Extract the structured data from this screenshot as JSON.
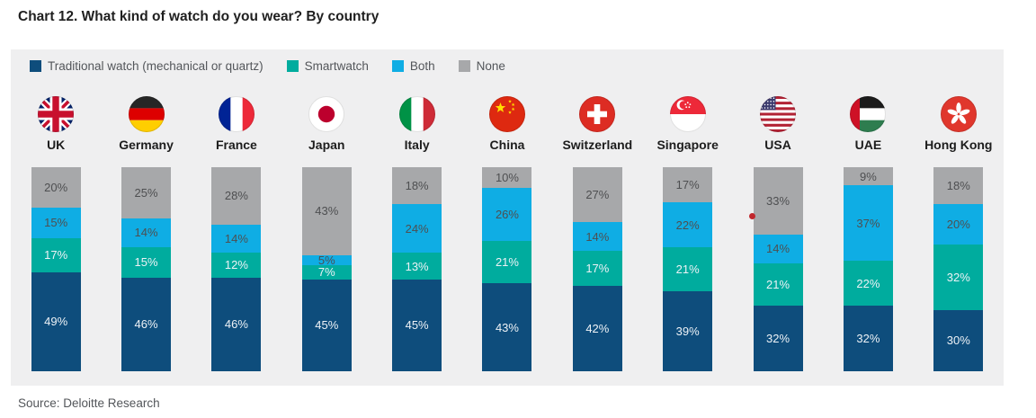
{
  "title": "Chart 12. What kind of watch do you wear? By country",
  "source_note": "Source: Deloitte Research",
  "panel": {
    "background": "#EFEFF0"
  },
  "accent_dot_color": "#C0272D",
  "countries": [
    {
      "name": "UK",
      "flag": "uk"
    },
    {
      "name": "Germany",
      "flag": "germany"
    },
    {
      "name": "France",
      "flag": "france"
    },
    {
      "name": "Japan",
      "flag": "japan"
    },
    {
      "name": "Italy",
      "flag": "italy"
    },
    {
      "name": "China",
      "flag": "china"
    },
    {
      "name": "Switzerland",
      "flag": "switzerland"
    },
    {
      "name": "Singapore",
      "flag": "singapore"
    },
    {
      "name": "USA",
      "flag": "usa"
    },
    {
      "name": "UAE",
      "flag": "uae"
    },
    {
      "name": "Hong Kong",
      "flag": "hongkong"
    }
  ],
  "chart_data": {
    "type": "bar",
    "stacked": true,
    "orientation": "vertical",
    "unit": "%",
    "title": "Chart 12. What kind of watch do you wear? By country",
    "categories": [
      "UK",
      "Germany",
      "France",
      "Japan",
      "Italy",
      "China",
      "Switzerland",
      "Singapore",
      "USA",
      "UAE",
      "Hong Kong"
    ],
    "series": [
      {
        "key": "traditional",
        "name": "Traditional watch (mechanical or quartz)",
        "color": "#0E4D7C",
        "label_style": "light",
        "values": [
          49,
          46,
          46,
          45,
          45,
          43,
          42,
          39,
          32,
          32,
          30
        ]
      },
      {
        "key": "smartwatch",
        "name": "Smartwatch",
        "color": "#00AC9E",
        "label_style": "light",
        "values": [
          17,
          15,
          12,
          7,
          13,
          21,
          17,
          21,
          21,
          22,
          32
        ]
      },
      {
        "key": "both",
        "name": "Both",
        "color": "#0FADE4",
        "label_style": "dark",
        "values": [
          15,
          14,
          14,
          5,
          24,
          26,
          14,
          22,
          14,
          37,
          20
        ]
      },
      {
        "key": "none",
        "name": "None",
        "color": "#A7A8AA",
        "label_style": "dark",
        "values": [
          20,
          25,
          28,
          43,
          18,
          10,
          27,
          17,
          33,
          9,
          18
        ]
      }
    ],
    "ylim": [
      0,
      100
    ],
    "grid": false,
    "legend_position": "top-left"
  }
}
